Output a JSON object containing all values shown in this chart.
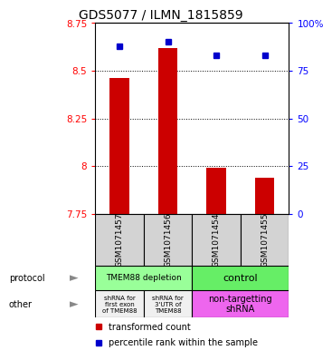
{
  "title": "GDS5077 / ILMN_1815859",
  "samples": [
    "GSM1071457",
    "GSM1071456",
    "GSM1071454",
    "GSM1071455"
  ],
  "bar_values": [
    8.46,
    8.62,
    7.99,
    7.94
  ],
  "bar_base": 7.75,
  "blue_values": [
    88,
    90,
    83,
    83
  ],
  "ylim_left": [
    7.75,
    8.75
  ],
  "ylim_right": [
    0,
    100
  ],
  "yticks_left": [
    7.75,
    8.0,
    8.25,
    8.5,
    8.75
  ],
  "yticks_right": [
    0,
    25,
    50,
    75,
    100
  ],
  "ytick_labels_left": [
    "7.75",
    "8",
    "8.25",
    "8.5",
    "8.75"
  ],
  "ytick_labels_right": [
    "0",
    "25",
    "50",
    "75",
    "100%"
  ],
  "bar_color": "#cc0000",
  "blue_color": "#0000cc",
  "protocol_labels": [
    "TMEM88 depletion",
    "control"
  ],
  "protocol_colors": [
    "#99ff99",
    "#66ee66"
  ],
  "other_labels": [
    "shRNA for\nfirst exon\nof TMEM88",
    "shRNA for\n3'UTR of\nTMEM88",
    "non-targetting\nshRNA"
  ],
  "other_colors": [
    "#f0f0f0",
    "#f0f0f0",
    "#ee66ee"
  ],
  "legend_red": "transformed count",
  "legend_blue": "percentile rank within the sample",
  "background_color": "#ffffff",
  "plot_bg": "#ffffff",
  "title_fontsize": 10
}
